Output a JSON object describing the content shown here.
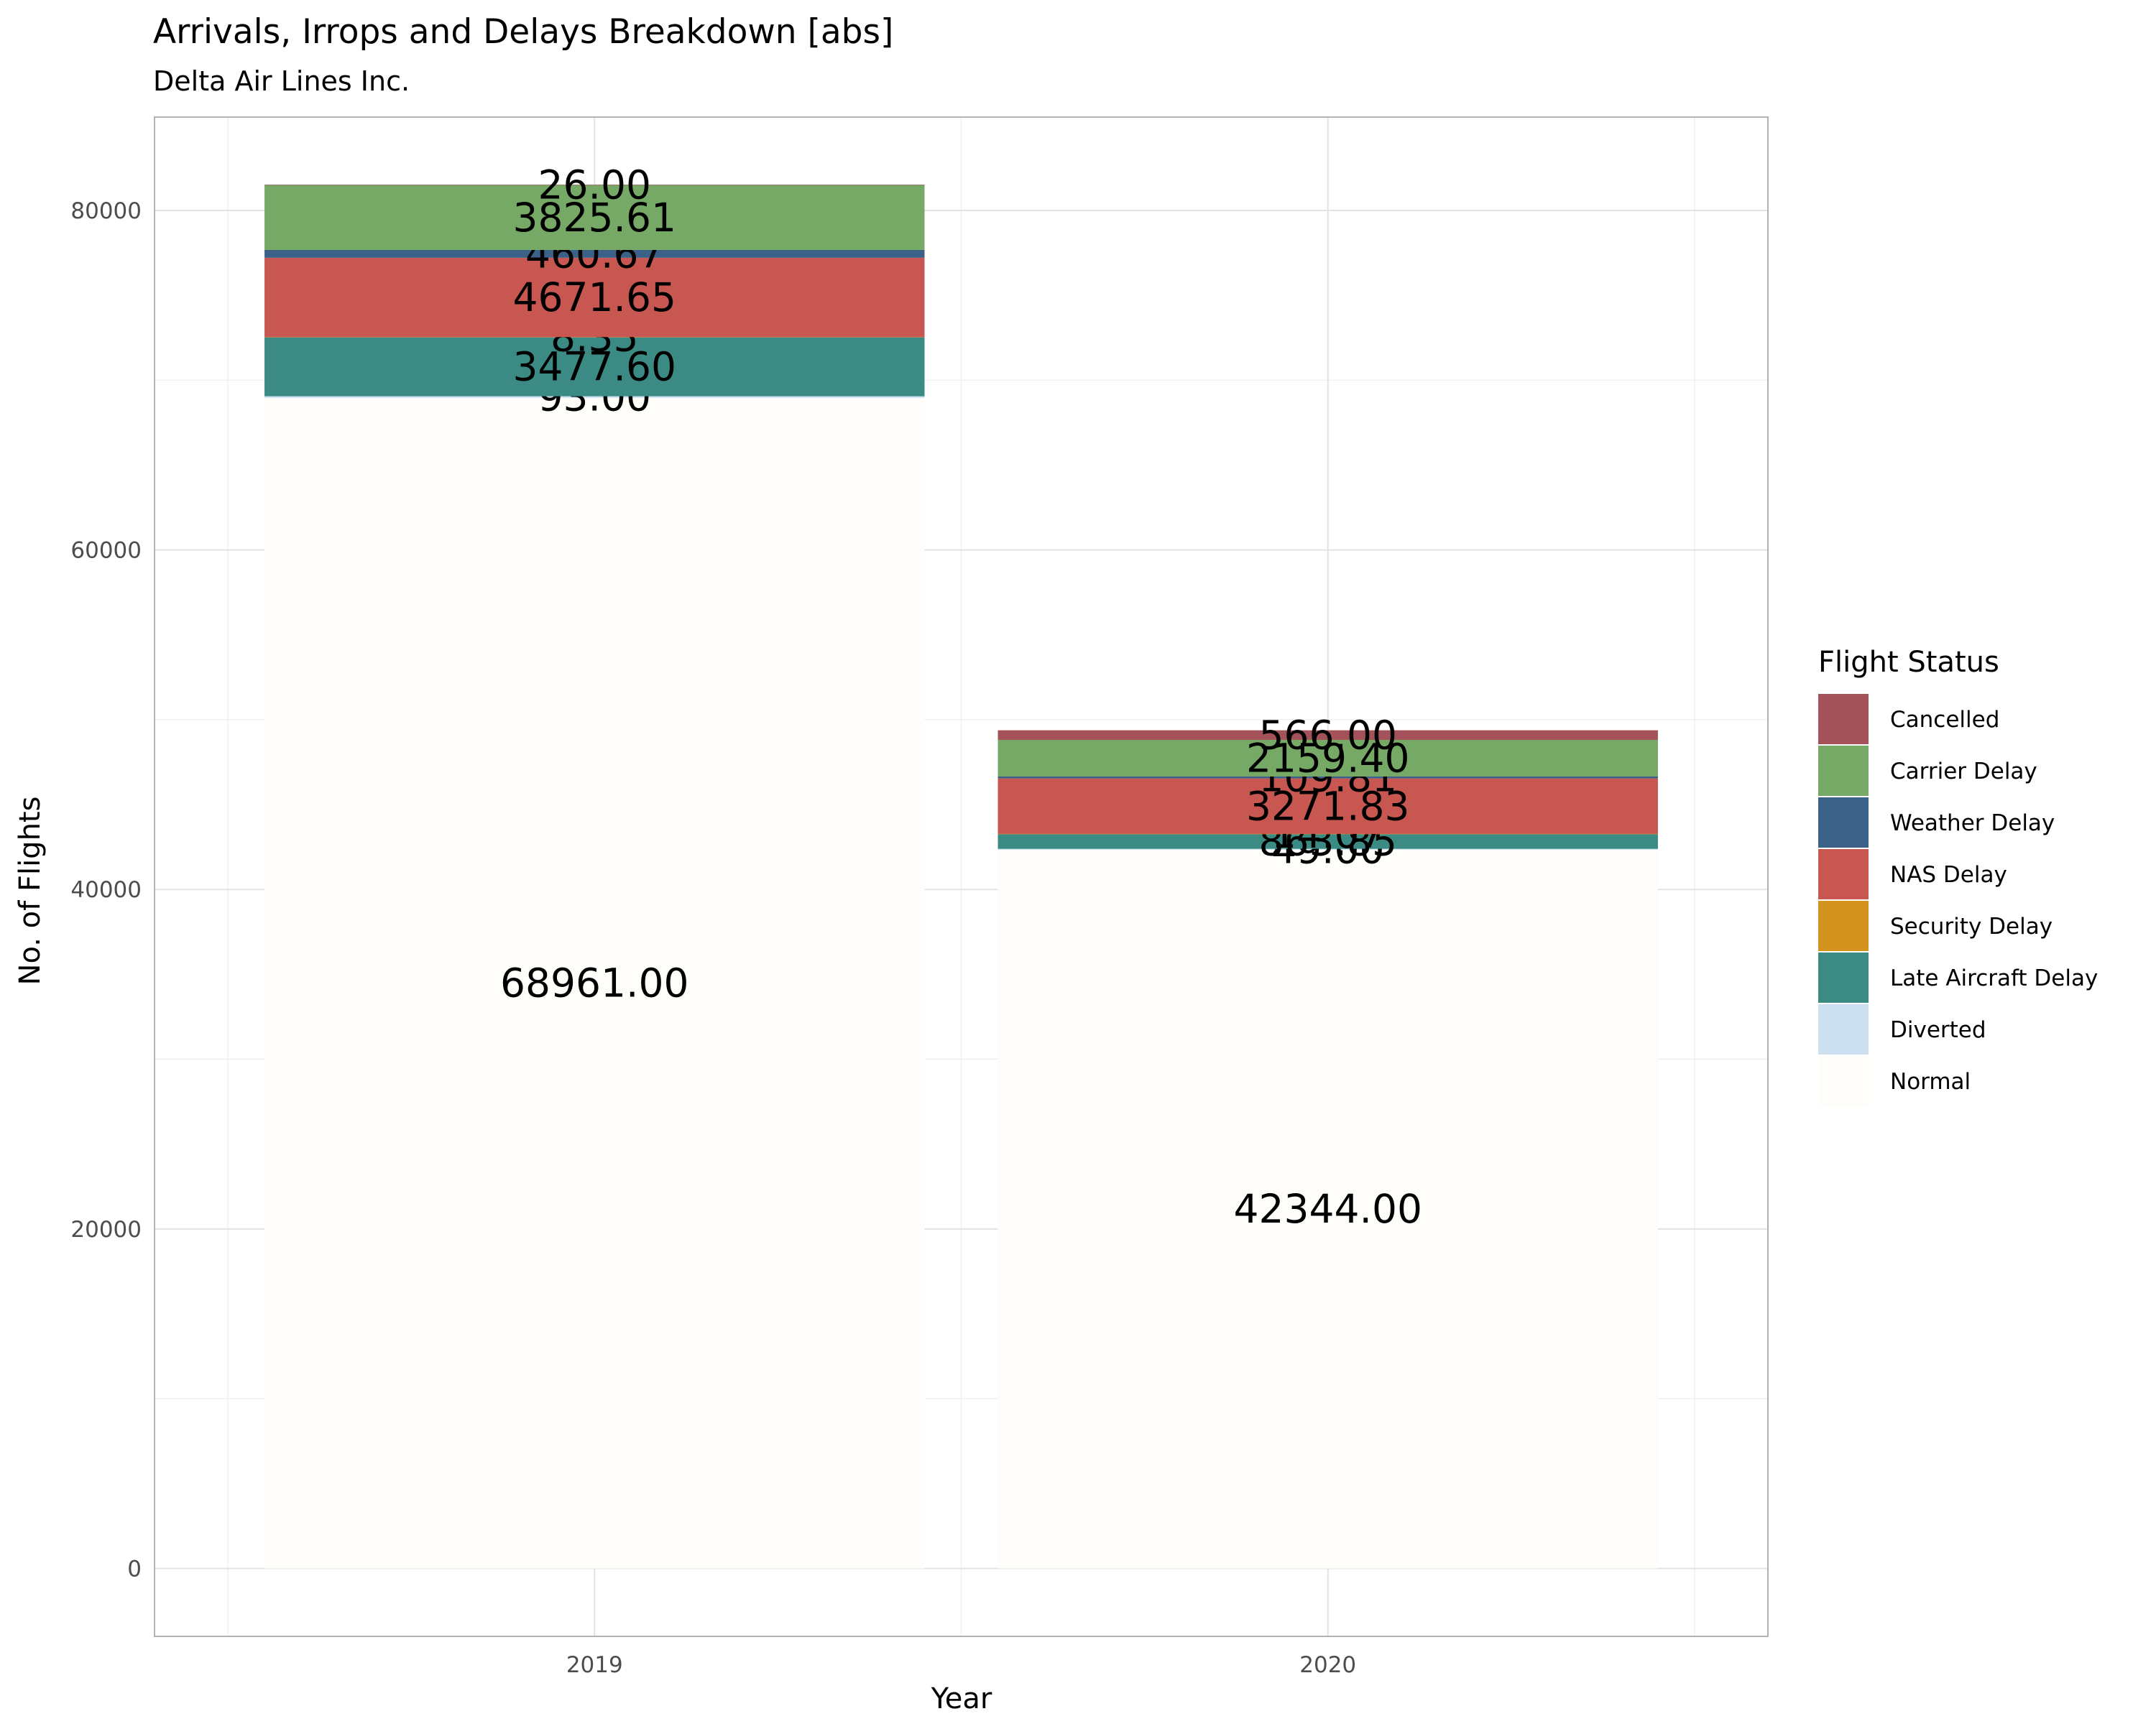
{
  "chart_data": {
    "type": "bar",
    "stacked": true,
    "title": "Arrivals, Irrops and Delays Breakdown [abs]",
    "subtitle": "Delta Air Lines Inc.",
    "xlabel": "Year",
    "ylabel": "No. of Flights",
    "categories": [
      "2019",
      "2020"
    ],
    "ylim": [
      -4000,
      85500
    ],
    "yticks": [
      0,
      20000,
      40000,
      60000,
      80000
    ],
    "grid": true,
    "legend": {
      "title": "Flight Status",
      "position": "right"
    },
    "series": [
      {
        "name": "Cancelled",
        "color": "#a4525a",
        "values": [
          26,
          566
        ],
        "labels": [
          "26.00",
          "566.00"
        ]
      },
      {
        "name": "Carrier Delay",
        "color": "#76a866",
        "values": [
          3825.61,
          2159.4
        ],
        "labels": [
          "3825.61",
          "2159.40"
        ]
      },
      {
        "name": "Weather Delay",
        "color": "#3c6189",
        "values": [
          460.67,
          109.81
        ],
        "labels": [
          "460.67",
          "109.81"
        ]
      },
      {
        "name": "NAS Delay",
        "color": "#c75750",
        "values": [
          4671.65,
          3271.83
        ],
        "labels": [
          "4671.65",
          "3271.83"
        ]
      },
      {
        "name": "Security Delay",
        "color": "#d4921e",
        "values": [
          8.35,
          14.07
        ],
        "labels": [
          "8.35",
          "14.07"
        ]
      },
      {
        "name": "Late Aircraft Delay",
        "color": "#3b8b84",
        "values": [
          3477.6,
          863.85
        ],
        "labels": [
          "3477.60",
          "863.85"
        ]
      },
      {
        "name": "Diverted",
        "color": "#cde0ef",
        "values": [
          93,
          49
        ],
        "labels": [
          "93.00",
          "49.00"
        ]
      },
      {
        "name": "Normal",
        "color": "#fffdfa",
        "values": [
          68961,
          42344
        ],
        "labels": [
          "68961.00",
          "42344.00"
        ]
      }
    ]
  }
}
